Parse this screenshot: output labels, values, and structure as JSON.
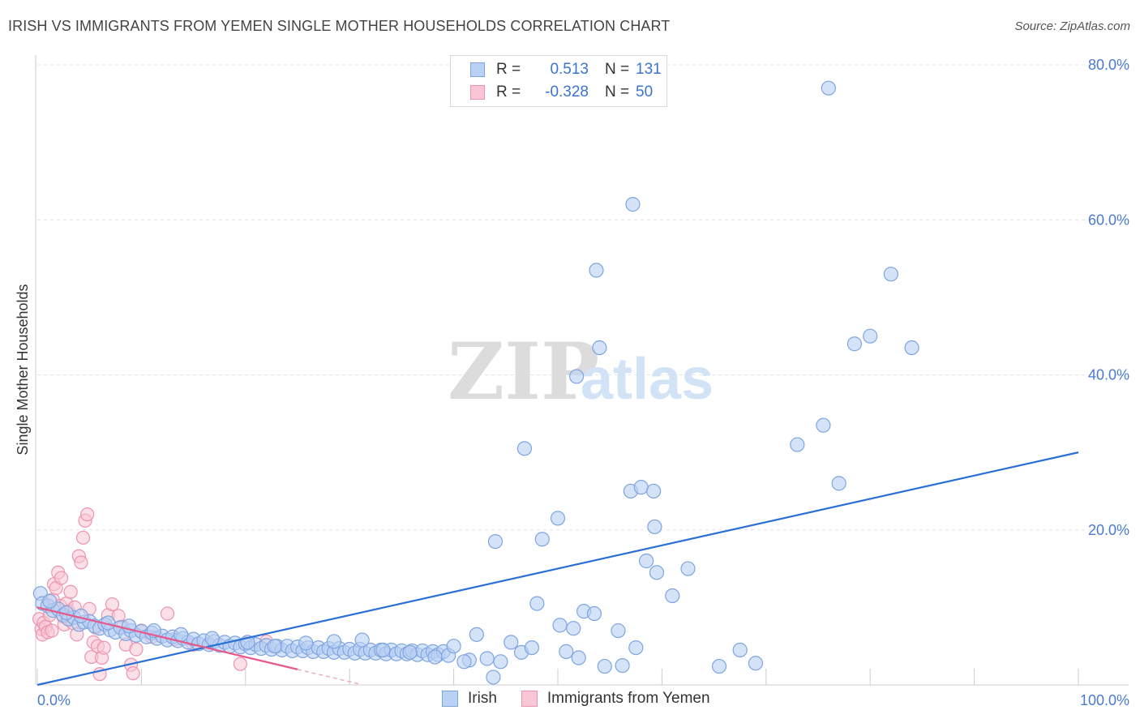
{
  "header": {
    "title": "IRISH VS IMMIGRANTS FROM YEMEN SINGLE MOTHER HOUSEHOLDS CORRELATION CHART",
    "source": "Source: ZipAtlas.com"
  },
  "legend": {
    "rows": [
      {
        "r_label": "R =",
        "r_value": "0.513",
        "n_label": "N =",
        "n_value": "131"
      },
      {
        "r_label": "R =",
        "r_value": "-0.328",
        "n_label": "N =",
        "n_value": "50"
      }
    ]
  },
  "bottom_legend": {
    "series_1": "Irish",
    "series_2": "Immigrants from Yemen"
  },
  "watermark": {
    "zip": "ZIP",
    "atlas": "atlas"
  },
  "colors": {
    "irish_fill": "#b9d1f3",
    "irish_stroke": "#7ea4e0",
    "irish_line": "#2a6fd4",
    "yemen_fill": "#f8c6d4",
    "yemen_stroke": "#ee92ad",
    "yemen_line": "#e8588a",
    "axis_text": "#4a7bd0",
    "grid": "#e4e4e4"
  },
  "chart_data": {
    "type": "scatter",
    "title": "IRISH VS IMMIGRANTS FROM YEMEN SINGLE MOTHER HOUSEHOLDS CORRELATION CHART",
    "xlabel": "",
    "ylabel": "Single Mother Households",
    "xlim": [
      0,
      100
    ],
    "ylim": [
      0,
      80
    ],
    "x_tick_labels": [
      "0.0%",
      "100.0%"
    ],
    "y_ticks": [
      20,
      40,
      60,
      80
    ],
    "y_tick_labels": [
      "20.0%",
      "40.0%",
      "60.0%",
      "80.0%"
    ],
    "grid": true,
    "legend_position": "top-center",
    "series": [
      {
        "name": "Irish",
        "r": 0.513,
        "n": 131,
        "trend": {
          "x": [
            0,
            100
          ],
          "y": [
            0.0,
            30.0
          ]
        },
        "points": [
          [
            0.3,
            11.8
          ],
          [
            0.5,
            10.5
          ],
          [
            1.0,
            10.2
          ],
          [
            1.5,
            9.6
          ],
          [
            2.0,
            9.8
          ],
          [
            2.5,
            9.0
          ],
          [
            3.0,
            8.5
          ],
          [
            3.5,
            8.7
          ],
          [
            4.0,
            7.8
          ],
          [
            4.5,
            8.1
          ],
          [
            5.0,
            8.2
          ],
          [
            5.5,
            7.6
          ],
          [
            6.0,
            7.3
          ],
          [
            6.5,
            7.8
          ],
          [
            7.0,
            7.1
          ],
          [
            7.5,
            6.8
          ],
          [
            8.0,
            7.4
          ],
          [
            8.5,
            6.6
          ],
          [
            9.0,
            7.0
          ],
          [
            9.5,
            6.4
          ],
          [
            10.0,
            6.9
          ],
          [
            10.5,
            6.2
          ],
          [
            11.0,
            6.7
          ],
          [
            11.5,
            6.0
          ],
          [
            12.0,
            6.3
          ],
          [
            12.5,
            5.8
          ],
          [
            13.0,
            6.2
          ],
          [
            13.5,
            5.7
          ],
          [
            14.0,
            6.0
          ],
          [
            14.5,
            5.5
          ],
          [
            15.0,
            5.9
          ],
          [
            15.5,
            5.3
          ],
          [
            16.0,
            5.7
          ],
          [
            16.5,
            5.2
          ],
          [
            17.0,
            5.6
          ],
          [
            17.5,
            5.1
          ],
          [
            18.0,
            5.5
          ],
          [
            18.5,
            5.0
          ],
          [
            19.0,
            5.4
          ],
          [
            19.5,
            4.9
          ],
          [
            20.0,
            5.3
          ],
          [
            20.5,
            4.8
          ],
          [
            21.0,
            5.2
          ],
          [
            21.5,
            4.7
          ],
          [
            22.0,
            5.1
          ],
          [
            22.5,
            4.6
          ],
          [
            23.0,
            5.0
          ],
          [
            23.5,
            4.5
          ],
          [
            24.0,
            5.0
          ],
          [
            24.5,
            4.4
          ],
          [
            25.0,
            4.9
          ],
          [
            25.5,
            4.4
          ],
          [
            26.0,
            4.8
          ],
          [
            26.5,
            4.3
          ],
          [
            27.0,
            4.8
          ],
          [
            27.5,
            4.3
          ],
          [
            28.0,
            4.7
          ],
          [
            28.5,
            4.2
          ],
          [
            29.0,
            4.7
          ],
          [
            29.5,
            4.2
          ],
          [
            30.0,
            4.6
          ],
          [
            30.5,
            4.1
          ],
          [
            31.0,
            4.6
          ],
          [
            31.5,
            4.1
          ],
          [
            32.0,
            4.5
          ],
          [
            32.5,
            4.1
          ],
          [
            33.0,
            4.5
          ],
          [
            33.5,
            4.0
          ],
          [
            34.0,
            4.5
          ],
          [
            34.5,
            4.0
          ],
          [
            35.0,
            4.4
          ],
          [
            35.5,
            4.0
          ],
          [
            36.0,
            4.4
          ],
          [
            36.5,
            3.9
          ],
          [
            37.0,
            4.4
          ],
          [
            37.5,
            3.9
          ],
          [
            38.0,
            4.3
          ],
          [
            38.5,
            3.9
          ],
          [
            39.0,
            4.3
          ],
          [
            39.5,
            3.8
          ],
          [
            1.2,
            10.8
          ],
          [
            2.8,
            9.3
          ],
          [
            4.2,
            8.9
          ],
          [
            6.8,
            8.0
          ],
          [
            8.8,
            7.6
          ],
          [
            11.2,
            7.0
          ],
          [
            13.8,
            6.5
          ],
          [
            16.8,
            6.0
          ],
          [
            20.2,
            5.5
          ],
          [
            22.8,
            5.0
          ],
          [
            25.8,
            5.4
          ],
          [
            28.5,
            5.6
          ],
          [
            31.2,
            5.8
          ],
          [
            33.2,
            4.5
          ],
          [
            35.8,
            4.2
          ],
          [
            38.2,
            3.6
          ],
          [
            41.5,
            3.2
          ],
          [
            43.2,
            3.4
          ],
          [
            44.5,
            3.0
          ],
          [
            46.5,
            4.2
          ],
          [
            47.5,
            4.8
          ],
          [
            48.0,
            10.5
          ],
          [
            50.2,
            7.7
          ],
          [
            51.5,
            7.3
          ],
          [
            52.5,
            9.5
          ],
          [
            53.5,
            9.2
          ],
          [
            55.8,
            7.0
          ],
          [
            57.5,
            4.8
          ],
          [
            58.5,
            16.0
          ],
          [
            59.5,
            14.5
          ],
          [
            50.8,
            4.3
          ],
          [
            52.0,
            3.5
          ],
          [
            54.5,
            2.4
          ],
          [
            56.2,
            2.5
          ],
          [
            45.5,
            5.5
          ],
          [
            42.2,
            6.5
          ],
          [
            40.0,
            5.0
          ],
          [
            41.0,
            3.0
          ],
          [
            43.8,
            1.0
          ],
          [
            44.0,
            18.5
          ],
          [
            48.5,
            18.8
          ],
          [
            50.0,
            21.5
          ],
          [
            46.8,
            30.5
          ],
          [
            51.8,
            39.8
          ],
          [
            54.0,
            43.5
          ],
          [
            57.0,
            25.0
          ],
          [
            58.0,
            25.5
          ],
          [
            59.2,
            25.0
          ],
          [
            61.0,
            11.5
          ],
          [
            59.3,
            20.4
          ],
          [
            62.5,
            15.0
          ],
          [
            73.0,
            31.0
          ],
          [
            75.5,
            33.5
          ],
          [
            80.0,
            45.0
          ],
          [
            84.0,
            43.5
          ],
          [
            78.5,
            44.0
          ],
          [
            76.0,
            77.0
          ],
          [
            77.0,
            26.0
          ],
          [
            82.0,
            53.0
          ],
          [
            57.2,
            62.0
          ],
          [
            53.7,
            53.5
          ],
          [
            65.5,
            2.4
          ],
          [
            67.5,
            4.5
          ],
          [
            69.0,
            2.8
          ]
        ]
      },
      {
        "name": "Immigrants from Yemen",
        "r": -0.328,
        "n": 50,
        "trend": {
          "x": [
            0,
            25
          ],
          "y": [
            10.0,
            2.0
          ]
        },
        "trend_dashed": {
          "x": [
            25,
            31
          ],
          "y": [
            2.0,
            0.1
          ]
        },
        "points": [
          [
            0.2,
            8.5
          ],
          [
            0.4,
            7.2
          ],
          [
            0.5,
            6.5
          ],
          [
            0.6,
            8.0
          ],
          [
            0.8,
            7.5
          ],
          [
            1.0,
            6.8
          ],
          [
            1.2,
            9.0
          ],
          [
            1.4,
            7.0
          ],
          [
            1.5,
            11.0
          ],
          [
            1.6,
            13.0
          ],
          [
            1.8,
            12.5
          ],
          [
            2.0,
            14.5
          ],
          [
            2.2,
            10.2
          ],
          [
            2.3,
            13.8
          ],
          [
            2.5,
            8.8
          ],
          [
            2.6,
            7.8
          ],
          [
            2.8,
            10.5
          ],
          [
            3.0,
            9.5
          ],
          [
            3.2,
            12.0
          ],
          [
            3.4,
            8.0
          ],
          [
            3.6,
            10.0
          ],
          [
            3.8,
            6.5
          ],
          [
            4.0,
            16.6
          ],
          [
            4.2,
            15.8
          ],
          [
            4.4,
            19.0
          ],
          [
            4.6,
            21.2
          ],
          [
            4.8,
            22.0
          ],
          [
            5.0,
            9.8
          ],
          [
            5.2,
            3.6
          ],
          [
            5.4,
            5.5
          ],
          [
            5.6,
            7.4
          ],
          [
            5.8,
            5.0
          ],
          [
            6.0,
            1.4
          ],
          [
            6.2,
            3.5
          ],
          [
            6.4,
            4.8
          ],
          [
            6.8,
            9.0
          ],
          [
            7.2,
            10.4
          ],
          [
            7.8,
            8.9
          ],
          [
            8.2,
            7.5
          ],
          [
            8.5,
            5.2
          ],
          [
            9.0,
            2.6
          ],
          [
            9.2,
            1.5
          ],
          [
            9.5,
            4.6
          ],
          [
            10.0,
            7.0
          ],
          [
            11.0,
            6.2
          ],
          [
            12.5,
            9.2
          ],
          [
            13.2,
            5.9
          ],
          [
            15.0,
            5.2
          ],
          [
            19.5,
            2.7
          ],
          [
            22.0,
            5.6
          ]
        ]
      }
    ]
  }
}
